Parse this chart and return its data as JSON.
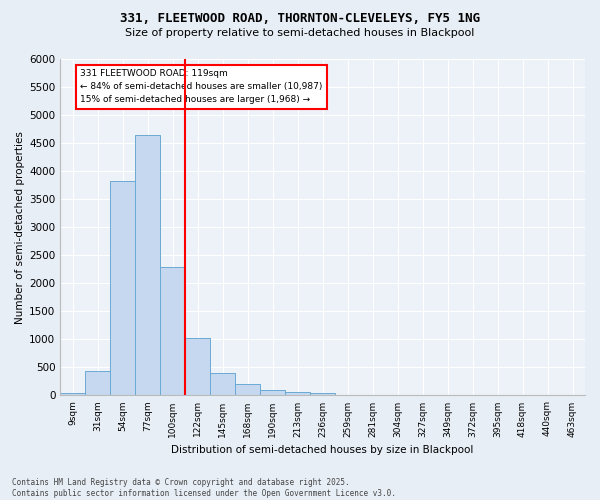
{
  "title1": "331, FLEETWOOD ROAD, THORNTON-CLEVELEYS, FY5 1NG",
  "title2": "Size of property relative to semi-detached houses in Blackpool",
  "xlabel": "Distribution of semi-detached houses by size in Blackpool",
  "ylabel": "Number of semi-detached properties",
  "bar_labels": [
    "9sqm",
    "31sqm",
    "54sqm",
    "77sqm",
    "100sqm",
    "122sqm",
    "145sqm",
    "168sqm",
    "190sqm",
    "213sqm",
    "236sqm",
    "259sqm",
    "281sqm",
    "304sqm",
    "327sqm",
    "349sqm",
    "372sqm",
    "395sqm",
    "418sqm",
    "440sqm",
    "463sqm"
  ],
  "bar_values": [
    50,
    440,
    3820,
    4650,
    2290,
    1020,
    400,
    200,
    100,
    65,
    50,
    0,
    0,
    0,
    0,
    0,
    0,
    0,
    0,
    0,
    0
  ],
  "bar_color": "#c5d8ef",
  "bar_edgecolor": "#6aaad4",
  "annotation_title": "331 FLEETWOOD ROAD: 119sqm",
  "annotation_line1": "← 84% of semi-detached houses are smaller (10,987)",
  "annotation_line2": "15% of semi-detached houses are larger (1,968) →",
  "vline_color": "red",
  "annotation_box_edgecolor": "red",
  "vline_pos": 4.5,
  "ylim": [
    0,
    6000
  ],
  "yticks": [
    0,
    500,
    1000,
    1500,
    2000,
    2500,
    3000,
    3500,
    4000,
    4500,
    5000,
    5500,
    6000
  ],
  "footer1": "Contains HM Land Registry data © Crown copyright and database right 2025.",
  "footer2": "Contains public sector information licensed under the Open Government Licence v3.0.",
  "bg_color": "#e8eef6",
  "plot_bg_color": "#edf2f8"
}
